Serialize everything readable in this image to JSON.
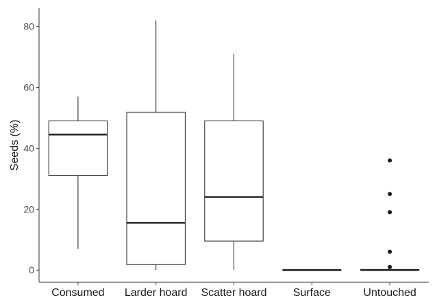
{
  "chart_data": {
    "type": "boxplot",
    "title": "",
    "xlabel": "",
    "ylabel": "Seeds (%)",
    "ylim": [
      -4,
      86
    ],
    "yticks": [
      0,
      20,
      40,
      60,
      80
    ],
    "grid": false,
    "legend": "none",
    "categories": [
      "Consumed",
      "Larder hoard",
      "Scatter hoard",
      "Surface",
      "Untouched"
    ],
    "boxes": [
      {
        "category": "Consumed",
        "whisker_low": 7,
        "q1": 31,
        "median": 44.5,
        "q3": 49,
        "whisker_high": 57,
        "outliers": []
      },
      {
        "category": "Larder hoard",
        "whisker_low": 0,
        "q1": 1.8,
        "median": 15.5,
        "q3": 51.8,
        "whisker_high": 82,
        "outliers": []
      },
      {
        "category": "Scatter hoard",
        "whisker_low": 0,
        "q1": 9.5,
        "median": 24,
        "q3": 49,
        "whisker_high": 71,
        "outliers": []
      },
      {
        "category": "Surface",
        "whisker_low": 0,
        "q1": 0,
        "median": 0,
        "q3": 0,
        "whisker_high": 0,
        "outliers": []
      },
      {
        "category": "Untouched",
        "whisker_low": 0,
        "q1": 0,
        "median": 0,
        "q3": 0.2,
        "whisker_high": 0.2,
        "outliers": [
          1,
          6,
          19,
          25,
          36
        ]
      }
    ],
    "colors": {
      "box_fill": "#ffffff",
      "box_stroke": "#1a1a1a",
      "median": "#1a1a1a",
      "outlier": "#1a1a1a",
      "axis": "#333333"
    }
  }
}
